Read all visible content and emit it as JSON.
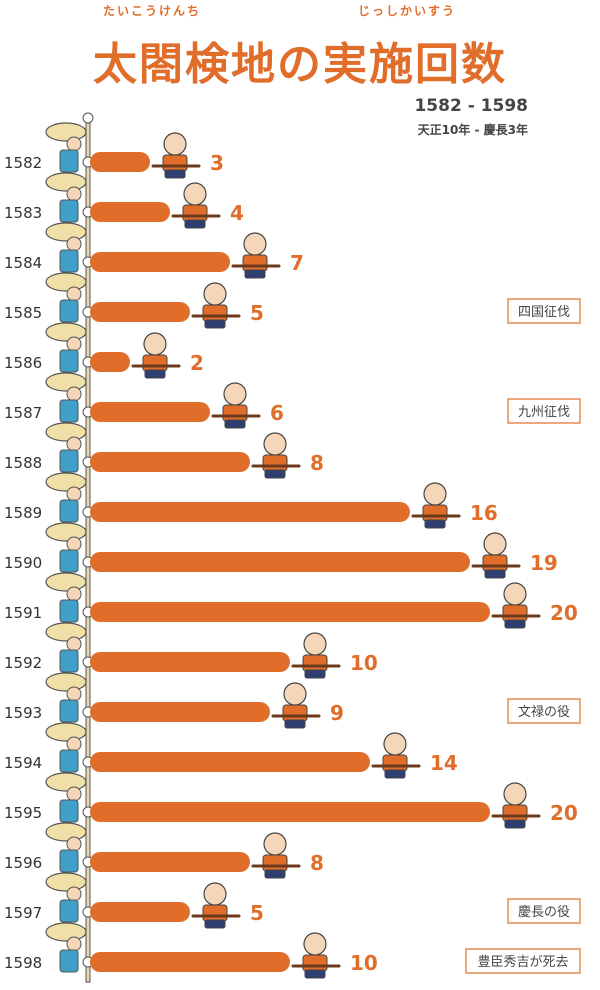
{
  "title": "太閤検地の実施回数",
  "ruby": [
    "たいこうけんち",
    "じっしかいすう"
  ],
  "subtitle_years": "1582 - 1598",
  "subtitle_era": "天正10年 - 慶長3年",
  "colors": {
    "bar": "#e06e2a",
    "label": "#e06e2a",
    "year": "#333333",
    "event_border": "#e06e2a"
  },
  "chart_data": {
    "type": "bar",
    "orientation": "horizontal",
    "categories": [
      "1582",
      "1583",
      "1584",
      "1585",
      "1586",
      "1587",
      "1588",
      "1589",
      "1590",
      "1591",
      "1592",
      "1593",
      "1594",
      "1595",
      "1596",
      "1597",
      "1598"
    ],
    "values": [
      3,
      4,
      7,
      5,
      2,
      6,
      8,
      16,
      19,
      20,
      10,
      9,
      14,
      20,
      8,
      5,
      10
    ],
    "xlim": [
      0,
      20
    ],
    "annotations": [
      {
        "category": "1585",
        "text": "四国征伐"
      },
      {
        "category": "1587",
        "text": "九州征伐"
      },
      {
        "category": "1593",
        "text": "文禄の役"
      },
      {
        "category": "1597",
        "text": "慶長の役"
      },
      {
        "category": "1598",
        "text": "豊臣秀吉が死去"
      }
    ]
  }
}
